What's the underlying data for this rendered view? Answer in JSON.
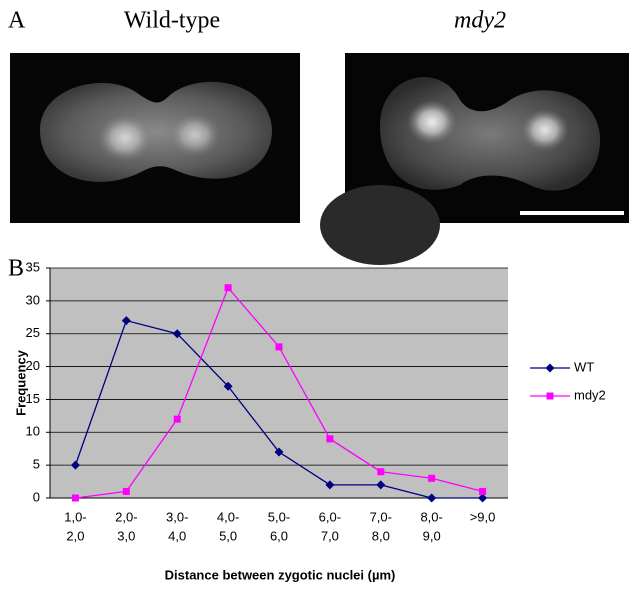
{
  "panel_a": {
    "label": "A",
    "left_title": "Wild-type",
    "right_title": "mdy2"
  },
  "chart_data": {
    "type": "line",
    "panel_label": "B",
    "categories": [
      [
        "1,0-",
        "2,0"
      ],
      [
        "2,0-",
        "3,0"
      ],
      [
        "3,0-",
        "4,0"
      ],
      [
        "4,0-",
        "5,0"
      ],
      [
        "5,0-",
        "6,0"
      ],
      [
        "6,0-",
        "7,0"
      ],
      [
        "7,0-",
        "8,0"
      ],
      [
        "8,0-",
        "9,0"
      ],
      [
        ">9,0"
      ]
    ],
    "series": [
      {
        "name": "WT",
        "color": "#000080",
        "marker": "diamond",
        "values": [
          5,
          27,
          25,
          17,
          7,
          2,
          2,
          0,
          0
        ]
      },
      {
        "name": "mdy2",
        "color": "#ff00ff",
        "marker": "square",
        "values": [
          0,
          1,
          12,
          32,
          23,
          9,
          4,
          3,
          1
        ]
      }
    ],
    "ylim": [
      0,
      35
    ],
    "yticks": [
      0,
      5,
      10,
      15,
      20,
      25,
      30,
      35
    ],
    "grid": true,
    "ylabel": "Frequency",
    "xlabel": "Distance between zygotic nuclei (µm)",
    "legend": "right"
  }
}
